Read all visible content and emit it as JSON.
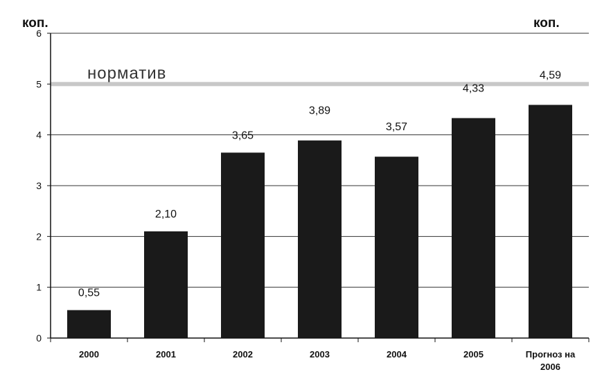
{
  "chart_data": {
    "type": "bar",
    "y_unit_left": "коп.",
    "y_unit_right": "коп.",
    "categories": [
      "2000",
      "2001",
      "2002",
      "2003",
      "2004",
      "2005",
      "Прогноз на 2006"
    ],
    "values": [
      0.55,
      2.1,
      3.65,
      3.89,
      3.57,
      4.33,
      4.59
    ],
    "data_labels": [
      "0,55",
      "2,10",
      "3,65",
      "3,89",
      "3,57",
      "4,33",
      "4,59"
    ],
    "ylim": [
      0,
      6
    ],
    "yticks": [
      0,
      1,
      2,
      3,
      4,
      5,
      6
    ],
    "grid": true,
    "reference_line": {
      "label": "норматив",
      "value": 5
    },
    "colors": {
      "bar": "#1a1a1a",
      "grid": "#333333",
      "reference": "#c8c8c8"
    }
  }
}
